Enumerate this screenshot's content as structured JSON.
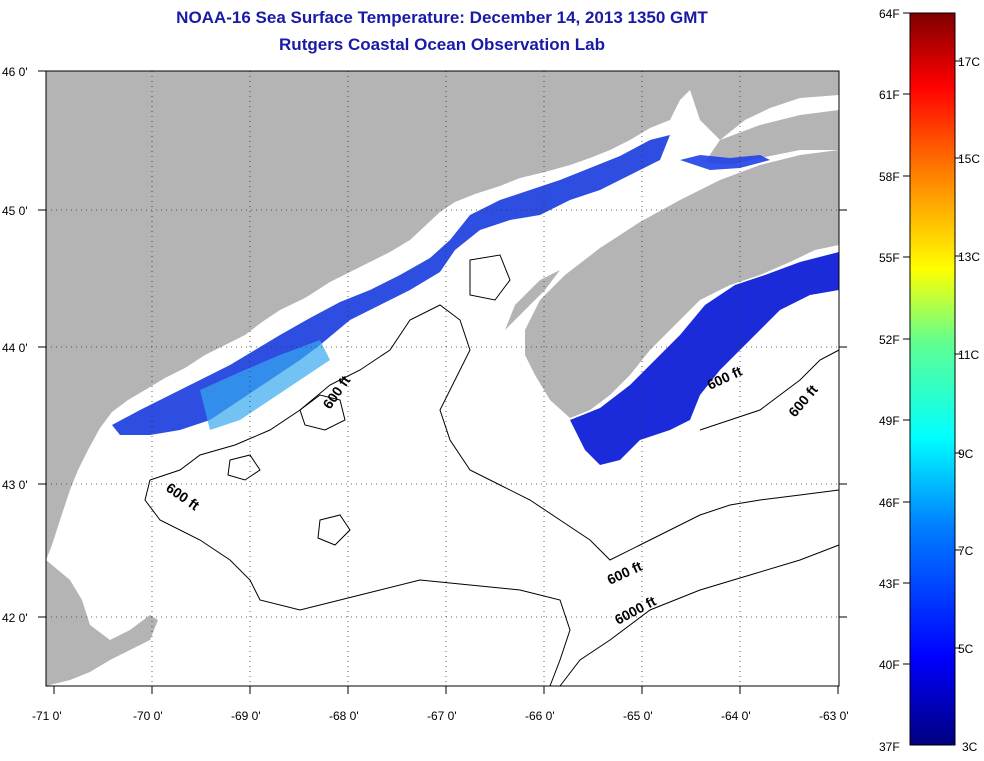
{
  "header": {
    "title": "NOAA-16 Sea Surface Temperature:  December 14, 2013 1350 GMT",
    "subtitle": "Rutgers Coastal Ocean Observation Lab"
  },
  "axes": {
    "x_ticks": [
      "-71 0'",
      "-70 0'",
      "-69 0'",
      "-68 0'",
      "-67 0'",
      "-66 0'",
      "-65 0'",
      "-64 0'",
      "-63 0'"
    ],
    "y_ticks": [
      "46 0'",
      "45 0'",
      "44 0'",
      "43 0'",
      "42 0'"
    ],
    "x_range": [
      -71,
      -63
    ],
    "y_range": [
      41.5,
      46
    ]
  },
  "contour_labels": [
    "600 ft",
    "600 ft",
    "600 ft",
    "600 ft",
    "600 ft",
    "6000 ft"
  ],
  "colorbar": {
    "fahrenheit": [
      "64F",
      "61F",
      "58F",
      "55F",
      "52F",
      "49F",
      "46F",
      "43F",
      "40F",
      "37F"
    ],
    "celsius": [
      "17C",
      "15C",
      "13C",
      "11C",
      "9C",
      "7C",
      "5C",
      "3C"
    ],
    "range_f": [
      37,
      64
    ]
  },
  "colors": {
    "land": "#b4b4b4",
    "water": "#ffffff",
    "title": "#1a1aa6"
  }
}
